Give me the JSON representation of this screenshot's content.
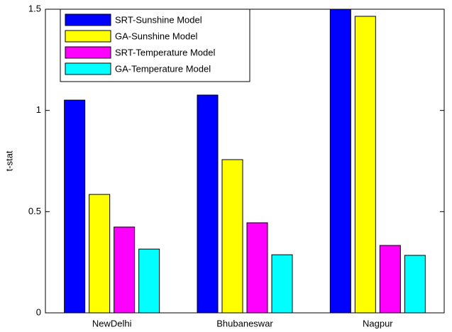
{
  "chart_data": {
    "type": "bar",
    "y_label": "t-stat",
    "categories": [
      "NewDelhi",
      "Bhubaneswar",
      "Nagpur"
    ],
    "series": [
      {
        "name": "SRT-Sunshine Model",
        "color": "#0000ff",
        "values": [
          1.051,
          1.076,
          1.52
        ]
      },
      {
        "name": "GA-Sunshine Model",
        "color": "#ffff00",
        "values": [
          0.585,
          0.757,
          1.465
        ]
      },
      {
        "name": "SRT-Temperature Model",
        "color": "#ff00ff",
        "values": [
          0.424,
          0.445,
          0.333
        ]
      },
      {
        "name": "GA-Temperature Model",
        "color": "#00ffff",
        "values": [
          0.315,
          0.287,
          0.284
        ]
      }
    ],
    "ylim": [
      0,
      1.5
    ],
    "yticks": [
      0,
      0.5,
      1,
      1.5
    ],
    "legend": "northwest"
  }
}
